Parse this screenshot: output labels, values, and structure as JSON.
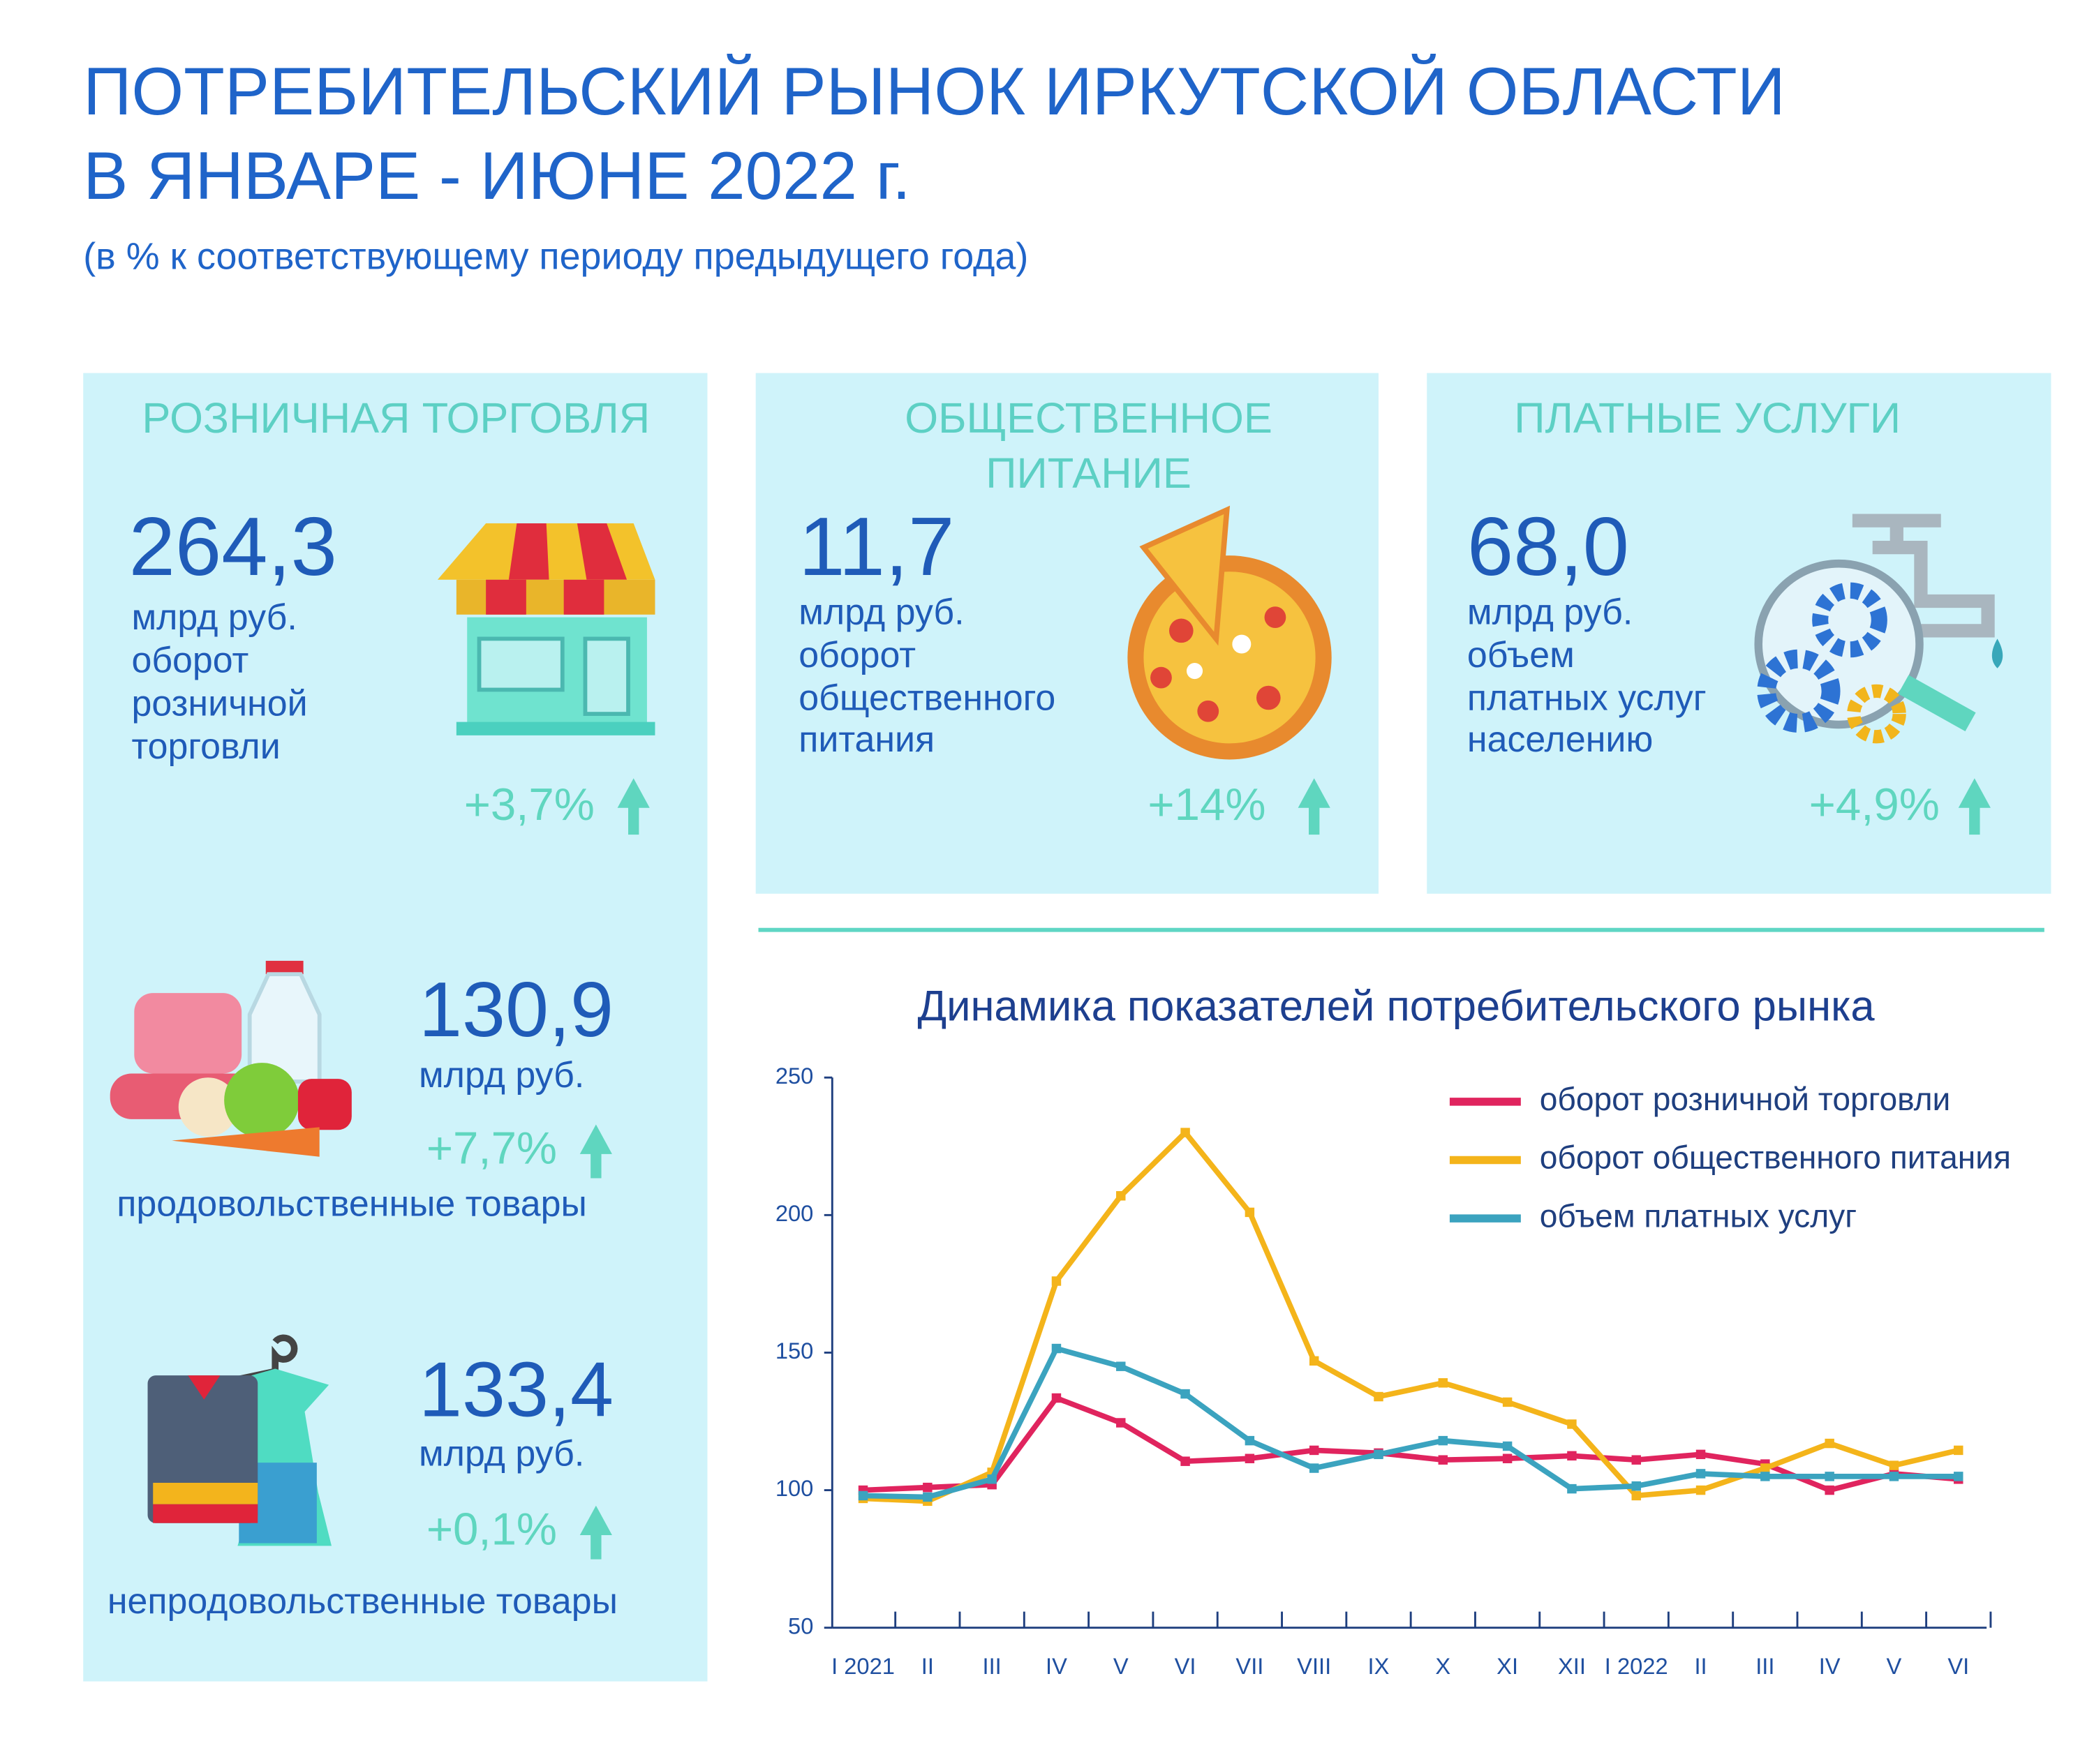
{
  "header": {
    "title_lines": [
      "ПОТРЕБИТЕЛЬСКИЙ РЫНОК ИРКУТСКОЙ ОБЛАСТИ",
      "В ЯНВАРЕ - ИЮНЕ 2022 г."
    ],
    "subtitle": "(в % к соответствующему периоду предыдущего года)"
  },
  "cards": [
    {
      "title_lines": [
        "РОЗНИЧНАЯ ТОРГОВЛЯ"
      ],
      "value": "264,3",
      "lines": [
        "млрд  руб.",
        "оборот",
        "розничной",
        "торговли"
      ],
      "change": "+3,7%"
    },
    {
      "title_lines": [
        "ОБЩЕСТВЕННОЕ",
        "ПИТАНИЕ"
      ],
      "value": "11,7",
      "lines": [
        "млрд  руб.",
        "оборот",
        "общественного",
        "питания"
      ],
      "change": "+14%"
    },
    {
      "title_lines": [
        "ПЛАТНЫЕ УСЛУГИ"
      ],
      "value": "68,0",
      "lines": [
        "млрд  руб.",
        "объем",
        "платных услуг",
        "населению"
      ],
      "change": "+4,9%"
    }
  ],
  "retail_parts": [
    {
      "value": "130,9",
      "unit": "млрд  руб.",
      "change": "+7,7%",
      "label": "продовольственные товары"
    },
    {
      "value": "133,4",
      "unit": "млрд  руб.",
      "change": "+0,1%",
      "label": "непродовольственные товары"
    }
  ],
  "chart_data": {
    "type": "line",
    "title": "Динамика показателей потребительского рынка",
    "categories": [
      "I 2021",
      "II",
      "III",
      "IV",
      "V",
      "VI",
      "VII",
      "VIII",
      "IX",
      "X",
      "XI",
      "XII",
      "I 2022",
      "II",
      "III",
      "IV",
      "V",
      "VI"
    ],
    "series": [
      {
        "name": "оборот розничной торговли",
        "color": "#e0245e",
        "values": [
          100,
          101,
          102,
          133.5,
          124.5,
          110.5,
          111.5,
          114.5,
          113.5,
          111,
          111.5,
          112.5,
          111,
          113,
          109.5,
          100,
          106,
          104
        ]
      },
      {
        "name": "оборот общественного питания",
        "color": "#f4b41a",
        "values": [
          97,
          96,
          106.5,
          176,
          207,
          230,
          201,
          147,
          134,
          139,
          132,
          124,
          98,
          100,
          108,
          117,
          109,
          114.5
        ]
      },
      {
        "name": "объем платных услуг",
        "color": "#3ba3bf",
        "values": [
          98,
          97.5,
          104,
          151.5,
          145,
          135,
          118,
          108,
          113,
          118,
          116,
          100.5,
          101.5,
          106,
          105,
          105,
          105,
          105
        ]
      }
    ],
    "ylim": [
      50,
      250
    ],
    "yticks": [
      50,
      100,
      150,
      200,
      250
    ],
    "legend": "upper right"
  }
}
